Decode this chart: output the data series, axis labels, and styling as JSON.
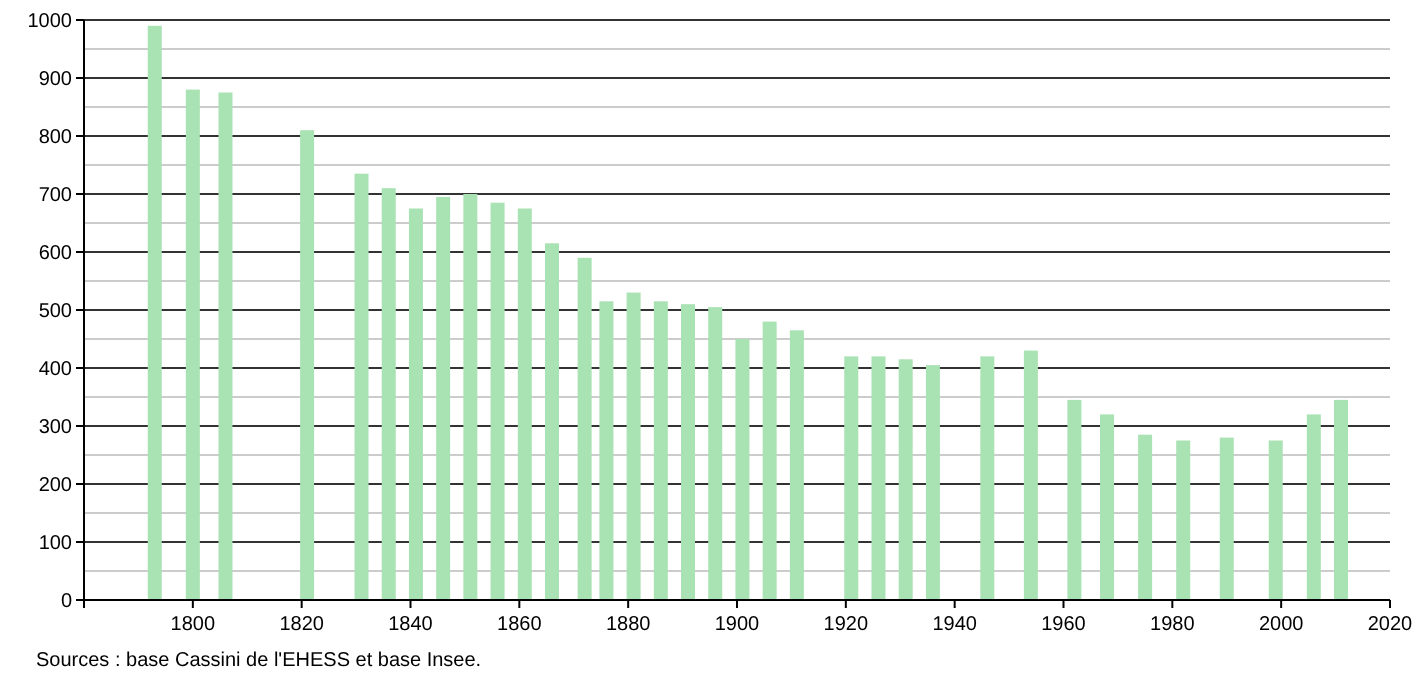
{
  "chart_data": {
    "type": "bar",
    "x": [
      1793,
      1800,
      1806,
      1821,
      1831,
      1836,
      1841,
      1846,
      1851,
      1856,
      1861,
      1866,
      1872,
      1876,
      1881,
      1886,
      1891,
      1896,
      1901,
      1906,
      1911,
      1921,
      1926,
      1931,
      1936,
      1946,
      1954,
      1962,
      1968,
      1975,
      1982,
      1990,
      1999,
      2006,
      2011
    ],
    "values": [
      990,
      880,
      875,
      810,
      735,
      710,
      675,
      695,
      700,
      685,
      675,
      615,
      590,
      515,
      530,
      515,
      510,
      505,
      450,
      480,
      465,
      420,
      420,
      415,
      405,
      420,
      430,
      345,
      320,
      285,
      275,
      280,
      275,
      320,
      345
    ],
    "color": "#a9e2b3",
    "xlim": [
      1780,
      2020
    ],
    "xticks": [
      {
        "value": 1780,
        "label": null
      },
      1800,
      1820,
      1840,
      1860,
      1880,
      1900,
      1920,
      1940,
      1960,
      1980,
      2000,
      2020
    ],
    "ylim": [
      0,
      1000
    ],
    "yticks": [
      0,
      100,
      200,
      300,
      400,
      500,
      600,
      700,
      800,
      900,
      1000
    ],
    "grid": "y",
    "annotations": [
      "Sources : base Cassini de l'EHESS et base Insee."
    ]
  }
}
